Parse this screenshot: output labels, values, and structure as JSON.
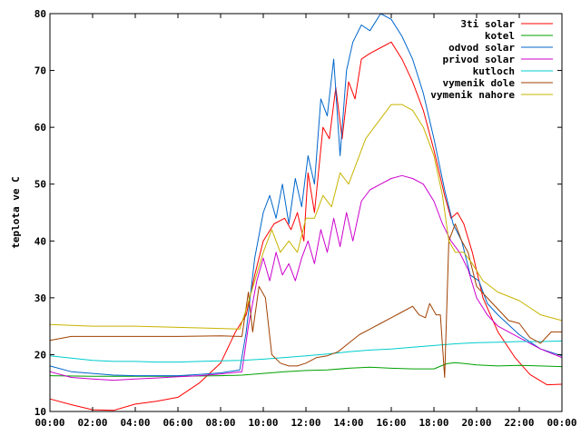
{
  "chart_data": {
    "type": "line",
    "title": "",
    "xlabel": "",
    "ylabel": "teplota ve C",
    "xlim": [
      0,
      24
    ],
    "ylim": [
      10,
      80
    ],
    "grid": false,
    "legend_position": "top-right",
    "x_ticks": [
      "00:00",
      "02:00",
      "04:00",
      "06:00",
      "08:00",
      "10:00",
      "12:00",
      "14:00",
      "16:00",
      "18:00",
      "20:00",
      "22:00",
      "00:00"
    ],
    "y_ticks": [
      "10",
      "20",
      "30",
      "40",
      "50",
      "60",
      "70",
      "80"
    ],
    "series": [
      {
        "name": "3ti solar",
        "color": "#ff0000",
        "points": [
          [
            0,
            12.2
          ],
          [
            1,
            11.2
          ],
          [
            2,
            10.3
          ],
          [
            3,
            10.2
          ],
          [
            4,
            11.3
          ],
          [
            5,
            11.8
          ],
          [
            6,
            12.5
          ],
          [
            7,
            15
          ],
          [
            8,
            18.5
          ],
          [
            8.7,
            24
          ],
          [
            9.2,
            27
          ],
          [
            9.6,
            34
          ],
          [
            10,
            40
          ],
          [
            10.5,
            43
          ],
          [
            11,
            44
          ],
          [
            11.3,
            42
          ],
          [
            11.6,
            45
          ],
          [
            11.9,
            40
          ],
          [
            12.1,
            52
          ],
          [
            12.4,
            45
          ],
          [
            12.8,
            60
          ],
          [
            13.1,
            58
          ],
          [
            13.4,
            67
          ],
          [
            13.7,
            58
          ],
          [
            14,
            68
          ],
          [
            14.3,
            65
          ],
          [
            14.6,
            72
          ],
          [
            15,
            73
          ],
          [
            15.5,
            74
          ],
          [
            16,
            75
          ],
          [
            16.5,
            72
          ],
          [
            17,
            68
          ],
          [
            17.5,
            63
          ],
          [
            18,
            56
          ],
          [
            18.5,
            48
          ],
          [
            18.8,
            44
          ],
          [
            19.1,
            45
          ],
          [
            19.4,
            43
          ],
          [
            19.8,
            38
          ],
          [
            20.3,
            30
          ],
          [
            21,
            24
          ],
          [
            21.8,
            19.5
          ],
          [
            22.5,
            16.5
          ],
          [
            23.3,
            14.7
          ],
          [
            24,
            14.8
          ]
        ]
      },
      {
        "name": "kotel",
        "color": "#00a000",
        "points": [
          [
            0,
            16.3
          ],
          [
            2,
            16.2
          ],
          [
            4,
            16.2
          ],
          [
            6,
            16.2
          ],
          [
            8,
            16.3
          ],
          [
            9,
            16.4
          ],
          [
            10,
            16.7
          ],
          [
            11,
            17
          ],
          [
            12,
            17.2
          ],
          [
            13,
            17.3
          ],
          [
            14,
            17.6
          ],
          [
            15,
            17.8
          ],
          [
            16,
            17.6
          ],
          [
            17,
            17.5
          ],
          [
            18,
            17.5
          ],
          [
            18.6,
            18.4
          ],
          [
            19,
            18.6
          ],
          [
            19.5,
            18.4
          ],
          [
            20,
            18.2
          ],
          [
            21,
            18
          ],
          [
            22,
            18.1
          ],
          [
            23,
            18
          ],
          [
            24,
            17.9
          ]
        ]
      },
      {
        "name": "odvod solar",
        "color": "#0066cc",
        "points": [
          [
            0,
            18
          ],
          [
            1,
            17
          ],
          [
            2,
            16.7
          ],
          [
            3,
            16.4
          ],
          [
            4,
            16.3
          ],
          [
            5,
            16.3
          ],
          [
            6,
            16.3
          ],
          [
            7,
            16.5
          ],
          [
            8,
            16.8
          ],
          [
            8.9,
            17.3
          ],
          [
            9.2,
            24
          ],
          [
            9.6,
            37
          ],
          [
            10,
            45
          ],
          [
            10.3,
            48
          ],
          [
            10.6,
            44
          ],
          [
            10.9,
            50
          ],
          [
            11.2,
            43
          ],
          [
            11.5,
            51
          ],
          [
            11.8,
            46
          ],
          [
            12.1,
            55
          ],
          [
            12.4,
            50
          ],
          [
            12.7,
            65
          ],
          [
            13,
            62
          ],
          [
            13.3,
            72
          ],
          [
            13.6,
            55
          ],
          [
            13.9,
            70
          ],
          [
            14.2,
            75
          ],
          [
            14.6,
            78
          ],
          [
            15,
            77
          ],
          [
            15.5,
            80
          ],
          [
            16,
            79
          ],
          [
            16.5,
            76
          ],
          [
            17,
            72
          ],
          [
            17.5,
            66
          ],
          [
            18,
            58
          ],
          [
            18.5,
            49
          ],
          [
            18.9,
            43
          ],
          [
            19.3,
            40
          ],
          [
            19.7,
            34
          ],
          [
            20.1,
            33
          ],
          [
            20.5,
            29
          ],
          [
            21,
            27
          ],
          [
            22,
            23.5
          ],
          [
            23,
            21
          ],
          [
            24,
            19.8
          ]
        ]
      },
      {
        "name": "privod solar",
        "color": "#cc00cc",
        "points": [
          [
            0,
            17
          ],
          [
            1,
            16
          ],
          [
            2,
            15.7
          ],
          [
            3,
            15.5
          ],
          [
            4,
            15.7
          ],
          [
            5,
            15.9
          ],
          [
            6,
            16.1
          ],
          [
            7,
            16.3
          ],
          [
            8,
            16.6
          ],
          [
            9,
            17
          ],
          [
            9.3,
            25
          ],
          [
            9.7,
            33
          ],
          [
            10,
            37
          ],
          [
            10.3,
            33
          ],
          [
            10.6,
            38
          ],
          [
            10.9,
            34
          ],
          [
            11.2,
            36
          ],
          [
            11.5,
            33
          ],
          [
            11.8,
            37
          ],
          [
            12.1,
            40
          ],
          [
            12.4,
            36
          ],
          [
            12.7,
            42
          ],
          [
            13,
            38
          ],
          [
            13.3,
            44
          ],
          [
            13.6,
            39
          ],
          [
            13.9,
            45
          ],
          [
            14.2,
            40
          ],
          [
            14.6,
            47
          ],
          [
            15,
            49
          ],
          [
            15.5,
            50
          ],
          [
            16,
            51
          ],
          [
            16.5,
            51.5
          ],
          [
            17,
            51
          ],
          [
            17.5,
            50
          ],
          [
            18,
            47
          ],
          [
            18.4,
            43
          ],
          [
            18.8,
            40
          ],
          [
            19.2,
            38
          ],
          [
            19.6,
            35
          ],
          [
            20,
            30
          ],
          [
            20.5,
            27
          ],
          [
            21,
            25
          ],
          [
            22,
            23
          ],
          [
            23,
            21
          ],
          [
            24,
            19.5
          ]
        ]
      },
      {
        "name": "kutloch",
        "color": "#00cccc",
        "points": [
          [
            0,
            19.8
          ],
          [
            1,
            19.4
          ],
          [
            2,
            19
          ],
          [
            3,
            18.8
          ],
          [
            4,
            18.8
          ],
          [
            5,
            18.7
          ],
          [
            6,
            18.7
          ],
          [
            7,
            18.8
          ],
          [
            8,
            18.9
          ],
          [
            9,
            19
          ],
          [
            10,
            19.2
          ],
          [
            11,
            19.5
          ],
          [
            12,
            19.8
          ],
          [
            13,
            20.1
          ],
          [
            14,
            20.5
          ],
          [
            15,
            20.8
          ],
          [
            16,
            21
          ],
          [
            17,
            21.3
          ],
          [
            18,
            21.6
          ],
          [
            19,
            21.9
          ],
          [
            20,
            22.1
          ],
          [
            21,
            22.2
          ],
          [
            22,
            22.3
          ],
          [
            23,
            22.3
          ],
          [
            24,
            22.4
          ]
        ]
      },
      {
        "name": "vymenik dole",
        "color": "#a04000",
        "points": [
          [
            0,
            22.5
          ],
          [
            1,
            23.2
          ],
          [
            2,
            23.2
          ],
          [
            4,
            23.2
          ],
          [
            6,
            23.2
          ],
          [
            8,
            23.3
          ],
          [
            9,
            23.2
          ],
          [
            9.3,
            31
          ],
          [
            9.5,
            24
          ],
          [
            9.8,
            32
          ],
          [
            10.1,
            30
          ],
          [
            10.4,
            20
          ],
          [
            10.8,
            18.5
          ],
          [
            11.2,
            18
          ],
          [
            11.6,
            18
          ],
          [
            12,
            18.5
          ],
          [
            12.5,
            19.5
          ],
          [
            13,
            19.8
          ],
          [
            13.5,
            20.5
          ],
          [
            14,
            22
          ],
          [
            14.5,
            23.5
          ],
          [
            15,
            24.5
          ],
          [
            15.5,
            25.5
          ],
          [
            16,
            26.5
          ],
          [
            16.5,
            27.5
          ],
          [
            17,
            28.5
          ],
          [
            17.3,
            27
          ],
          [
            17.6,
            26.5
          ],
          [
            17.8,
            29
          ],
          [
            18.1,
            27
          ],
          [
            18.3,
            27
          ],
          [
            18.5,
            16
          ],
          [
            18.7,
            40
          ],
          [
            19,
            43
          ],
          [
            19.3,
            40
          ],
          [
            19.6,
            38
          ],
          [
            20,
            32
          ],
          [
            20.5,
            30
          ],
          [
            21,
            28
          ],
          [
            21.5,
            26
          ],
          [
            22,
            25.5
          ],
          [
            22.5,
            23
          ],
          [
            23,
            22
          ],
          [
            23.5,
            24
          ],
          [
            24,
            24
          ]
        ]
      },
      {
        "name": "vymenik nahore",
        "color": "#c8b400",
        "points": [
          [
            0,
            25.3
          ],
          [
            2,
            25
          ],
          [
            4,
            25
          ],
          [
            6,
            24.8
          ],
          [
            8,
            24.6
          ],
          [
            8.9,
            24.5
          ],
          [
            9.2,
            28
          ],
          [
            9.6,
            33
          ],
          [
            10,
            38
          ],
          [
            10.4,
            42
          ],
          [
            10.8,
            38
          ],
          [
            11.2,
            40
          ],
          [
            11.6,
            38
          ],
          [
            12,
            44
          ],
          [
            12.4,
            44
          ],
          [
            12.8,
            48
          ],
          [
            13.2,
            46
          ],
          [
            13.6,
            52
          ],
          [
            14,
            50
          ],
          [
            14.4,
            54
          ],
          [
            14.8,
            58
          ],
          [
            15.2,
            60
          ],
          [
            15.6,
            62
          ],
          [
            16,
            64
          ],
          [
            16.5,
            64
          ],
          [
            17,
            63
          ],
          [
            17.5,
            60
          ],
          [
            18,
            55
          ],
          [
            18.4,
            48
          ],
          [
            18.7,
            40
          ],
          [
            19,
            38
          ],
          [
            19.4,
            38
          ],
          [
            19.8,
            36
          ],
          [
            20.3,
            33
          ],
          [
            21,
            31
          ],
          [
            22,
            29.5
          ],
          [
            23,
            27
          ],
          [
            24,
            26
          ]
        ]
      }
    ]
  }
}
